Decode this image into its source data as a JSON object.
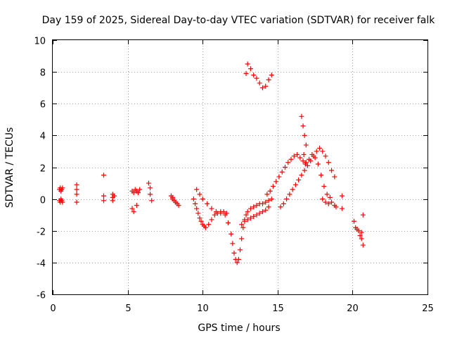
{
  "chart_data": {
    "type": "scatter",
    "title": "Day 159 of 2025, Sidereal Day-to-day VTEC variation (SDTVAR) for receiver falk",
    "xlabel": "GPS time / hours",
    "ylabel": "SDTVAR / TECUs",
    "xlim": [
      0,
      25
    ],
    "ylim": [
      -6,
      10
    ],
    "xticks": [
      "0",
      "5",
      "10",
      "15",
      "20",
      "25"
    ],
    "yticks": [
      "-6",
      "-4",
      "-2",
      "0",
      "2",
      "4",
      "6",
      "8",
      "10"
    ],
    "grid": true,
    "marker": "plus",
    "series": [
      {
        "name": "SDTVAR",
        "color": "#ff0000",
        "x": [
          0.45,
          0.5,
          0.55,
          0.6,
          0.65,
          0.45,
          0.5,
          0.55,
          0.6,
          0.65,
          1.6,
          1.6,
          1.6,
          1.6,
          3.4,
          3.4,
          3.4,
          4.0,
          4.0,
          4.0,
          4.1,
          5.3,
          5.4,
          5.5,
          5.6,
          5.7,
          5.8,
          5.3,
          5.4,
          5.6,
          6.4,
          6.5,
          6.5,
          6.6,
          7.9,
          8.0,
          8.1,
          8.2,
          8.3,
          8.4,
          8.0,
          8.2,
          9.4,
          9.5,
          9.6,
          9.7,
          9.8,
          9.9,
          10.0,
          10.1,
          10.2,
          10.4,
          10.6,
          10.8,
          11.0,
          11.2,
          11.4,
          11.6,
          9.6,
          9.8,
          10.0,
          10.3,
          10.6,
          10.9,
          11.2,
          11.5,
          11.7,
          11.9,
          12.0,
          12.1,
          12.2,
          12.3,
          12.4,
          12.5,
          12.6,
          12.7,
          12.8,
          12.9,
          13.0,
          13.2,
          13.4,
          13.6,
          13.8,
          14.0,
          14.2,
          14.4,
          14.6,
          12.6,
          12.8,
          13.0,
          13.2,
          13.4,
          13.6,
          13.8,
          14.0,
          14.2,
          14.4,
          12.9,
          13.0,
          13.2,
          13.4,
          13.6,
          13.8,
          14.0,
          14.2,
          14.4,
          14.6,
          14.3,
          14.5,
          14.7,
          14.9,
          15.1,
          15.3,
          15.5,
          15.7,
          15.9,
          16.1,
          16.3,
          16.5,
          16.7,
          16.9,
          17.1,
          17.3,
          17.5,
          17.7,
          17.9,
          18.1,
          18.3,
          18.5,
          15.2,
          15.4,
          15.6,
          15.8,
          16.0,
          16.2,
          16.4,
          16.6,
          16.8,
          17.0,
          17.2,
          17.4,
          17.6,
          17.8,
          18.0,
          18.2,
          18.4,
          18.6,
          18.8,
          16.6,
          16.7,
          16.8,
          16.9,
          16.75,
          16.85,
          18.0,
          18.2,
          18.4,
          18.6,
          18.8,
          18.9,
          19.3,
          19.3,
          20.1,
          20.2,
          20.3,
          20.4,
          20.5,
          20.6,
          20.7,
          20.6,
          20.7
        ],
        "y": [
          0.6,
          0.7,
          0.5,
          0.6,
          0.7,
          -0.1,
          -0.2,
          0.0,
          -0.1,
          -0.2,
          0.9,
          0.6,
          0.3,
          -0.2,
          1.5,
          0.2,
          -0.1,
          0.3,
          0.1,
          -0.1,
          0.2,
          0.5,
          0.4,
          0.6,
          0.5,
          0.4,
          0.6,
          -0.6,
          -0.8,
          -0.4,
          1.0,
          0.7,
          0.3,
          -0.1,
          0.2,
          0.0,
          -0.1,
          -0.2,
          -0.3,
          -0.4,
          0.1,
          -0.2,
          0.0,
          -0.3,
          -0.6,
          -0.9,
          -1.2,
          -1.4,
          -1.6,
          -1.7,
          -1.8,
          -1.6,
          -1.3,
          -1.0,
          -0.9,
          -0.8,
          -0.8,
          -0.9,
          0.6,
          0.3,
          0.0,
          -0.3,
          -0.6,
          -0.8,
          -0.9,
          -1.0,
          -1.5,
          -2.2,
          -2.8,
          -3.4,
          -3.8,
          -4.0,
          -3.8,
          -3.2,
          -2.5,
          -1.8,
          -1.3,
          -1.0,
          -0.8,
          -0.6,
          -0.5,
          -0.4,
          -0.3,
          -0.3,
          -0.2,
          -0.1,
          0.0,
          -1.6,
          -1.4,
          -1.3,
          -1.2,
          -1.1,
          -1.0,
          -0.9,
          -0.8,
          -0.7,
          -0.5,
          7.9,
          8.5,
          8.2,
          7.8,
          7.6,
          7.3,
          7.0,
          7.1,
          7.5,
          7.8,
          0.3,
          0.5,
          0.8,
          1.1,
          1.4,
          1.7,
          2.0,
          2.3,
          2.5,
          2.7,
          2.8,
          2.6,
          2.4,
          2.3,
          2.5,
          2.8,
          2.6,
          2.2,
          1.5,
          0.8,
          0.3,
          0.1,
          -0.5,
          -0.3,
          0.0,
          0.3,
          0.6,
          0.9,
          1.2,
          1.5,
          1.8,
          2.1,
          2.4,
          2.7,
          3.0,
          3.2,
          3.0,
          2.7,
          2.3,
          1.8,
          1.4,
          5.2,
          4.6,
          4.0,
          3.4,
          2.8,
          2.2,
          0.0,
          -0.2,
          -0.3,
          -0.2,
          -0.4,
          -0.5,
          0.2,
          -0.6,
          -1.4,
          -1.8,
          -1.9,
          -2.0,
          -2.3,
          -2.1,
          -1.0,
          -2.5,
          -2.9
        ]
      }
    ]
  }
}
